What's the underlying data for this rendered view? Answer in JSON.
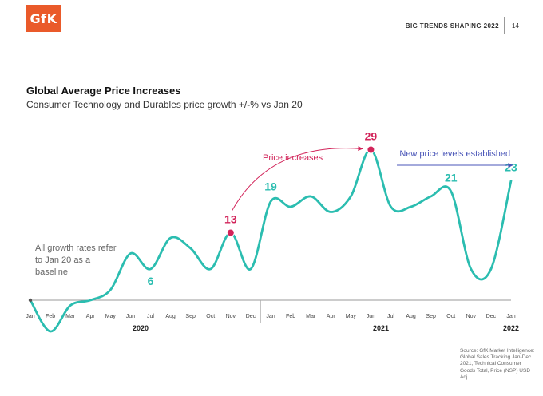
{
  "header": {
    "logo_text": "GfK",
    "report_title": "BIG TRENDS SHAPING 2022",
    "page_number": "14"
  },
  "chart_data": {
    "type": "line",
    "title": "Global Average Price Increases",
    "subtitle": "Consumer Technology and Durables price growth +/-% vs Jan 20",
    "x": [
      "Jan",
      "Feb",
      "Mar",
      "Apr",
      "May",
      "Jun",
      "Jul",
      "Aug",
      "Sep",
      "Oct",
      "Nov",
      "Dec",
      "Jan",
      "Feb",
      "Mar",
      "Apr",
      "May",
      "Jun",
      "Jul",
      "Aug",
      "Sep",
      "Oct",
      "Nov",
      "Dec",
      "Jan"
    ],
    "year_labels": [
      "2020",
      "2021",
      "2022"
    ],
    "series": [
      {
        "values": [
          0,
          -6,
          -1,
          0,
          2,
          9,
          6,
          12,
          10,
          6,
          13,
          6,
          19,
          18,
          20,
          17,
          20,
          29,
          18,
          18,
          20,
          21,
          6,
          6,
          23
        ],
        "color": "#2bbdb0"
      }
    ],
    "value_labels": [
      {
        "index": 6,
        "text": "6",
        "color": "#2bbdb0"
      },
      {
        "index": 10,
        "text": "13",
        "color": "#d2245a"
      },
      {
        "index": 12,
        "text": "19",
        "color": "#2bbdb0"
      },
      {
        "index": 17,
        "text": "29",
        "color": "#d2245a"
      },
      {
        "index": 21,
        "text": "21",
        "color": "#2bbdb0"
      },
      {
        "index": 24,
        "text": "23",
        "color": "#2bbdb0"
      }
    ],
    "highlight_points": [
      10,
      17
    ],
    "annotations": {
      "price_increases": "Price increases",
      "new_levels": "New price levels established",
      "baseline_note": "All growth rates refer to Jan 20 as a baseline"
    },
    "colors": {
      "line": "#2bbdb0",
      "highlight": "#d2245a",
      "arrow_blue": "#4a56b8",
      "axis": "#777777"
    },
    "grid": false
  },
  "source_note": "Source: GfK Market Intelligence: Global Sales Tracking Jan-Dec 2021, Technical Consumer Goods Total, Price (NSP) USD Adj."
}
